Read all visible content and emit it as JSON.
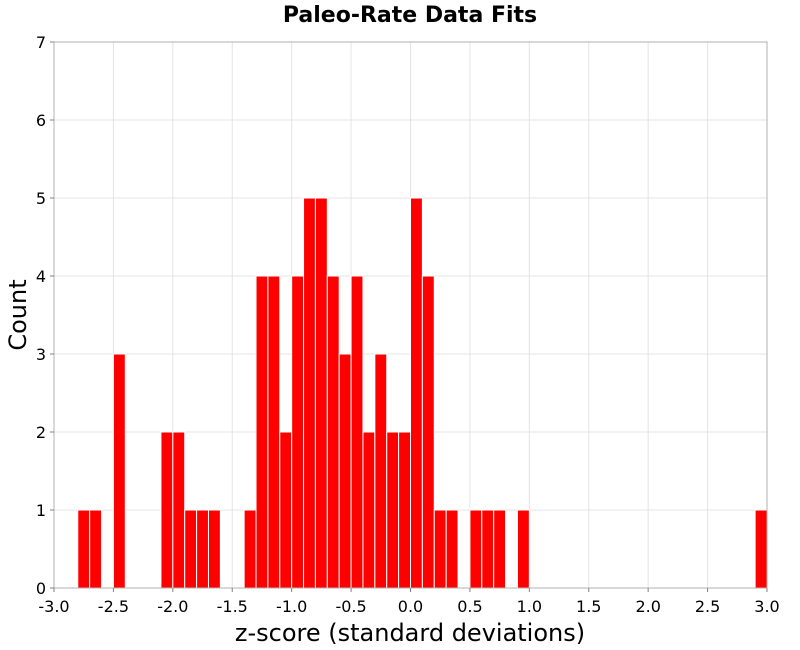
{
  "chart_data": {
    "type": "bar",
    "title": "Paleo-Rate Data Fits",
    "xlabel": "z-score (standard deviations)",
    "ylabel": "Count",
    "xlim": [
      -3.0,
      3.0
    ],
    "ylim": [
      0,
      7
    ],
    "bin_width": 0.1,
    "x_ticks": [
      "-3.0",
      "-2.5",
      "-2.0",
      "-1.5",
      "-1.0",
      "-0.5",
      "0.0",
      "0.5",
      "1.0",
      "1.5",
      "2.0",
      "2.5",
      "3.0"
    ],
    "x_tick_values": [
      -3.0,
      -2.5,
      -2.0,
      -1.5,
      -1.0,
      -0.5,
      0.0,
      0.5,
      1.0,
      1.5,
      2.0,
      2.5,
      3.0
    ],
    "y_ticks": [
      "0",
      "1",
      "2",
      "3",
      "4",
      "5",
      "6",
      "7"
    ],
    "y_tick_values": [
      0,
      1,
      2,
      3,
      4,
      5,
      6,
      7
    ],
    "grid": true,
    "bar_color": "#ff0000",
    "bins": [
      {
        "x": -2.75,
        "count": 1
      },
      {
        "x": -2.65,
        "count": 1
      },
      {
        "x": -2.45,
        "count": 3
      },
      {
        "x": -2.05,
        "count": 2
      },
      {
        "x": -1.95,
        "count": 2
      },
      {
        "x": -1.85,
        "count": 1
      },
      {
        "x": -1.75,
        "count": 1
      },
      {
        "x": -1.65,
        "count": 1
      },
      {
        "x": -1.35,
        "count": 1
      },
      {
        "x": -1.25,
        "count": 4
      },
      {
        "x": -1.15,
        "count": 4
      },
      {
        "x": -1.05,
        "count": 2
      },
      {
        "x": -0.95,
        "count": 4
      },
      {
        "x": -0.85,
        "count": 5
      },
      {
        "x": -0.75,
        "count": 5
      },
      {
        "x": -0.65,
        "count": 4
      },
      {
        "x": -0.55,
        "count": 3
      },
      {
        "x": -0.45,
        "count": 4
      },
      {
        "x": -0.35,
        "count": 2
      },
      {
        "x": -0.25,
        "count": 3
      },
      {
        "x": -0.15,
        "count": 2
      },
      {
        "x": -0.05,
        "count": 2
      },
      {
        "x": 0.05,
        "count": 5
      },
      {
        "x": 0.15,
        "count": 4
      },
      {
        "x": 0.25,
        "count": 1
      },
      {
        "x": 0.35,
        "count": 1
      },
      {
        "x": 0.55,
        "count": 1
      },
      {
        "x": 0.65,
        "count": 1
      },
      {
        "x": 0.75,
        "count": 1
      },
      {
        "x": 0.95,
        "count": 1
      },
      {
        "x": 2.95,
        "count": 1
      }
    ]
  }
}
